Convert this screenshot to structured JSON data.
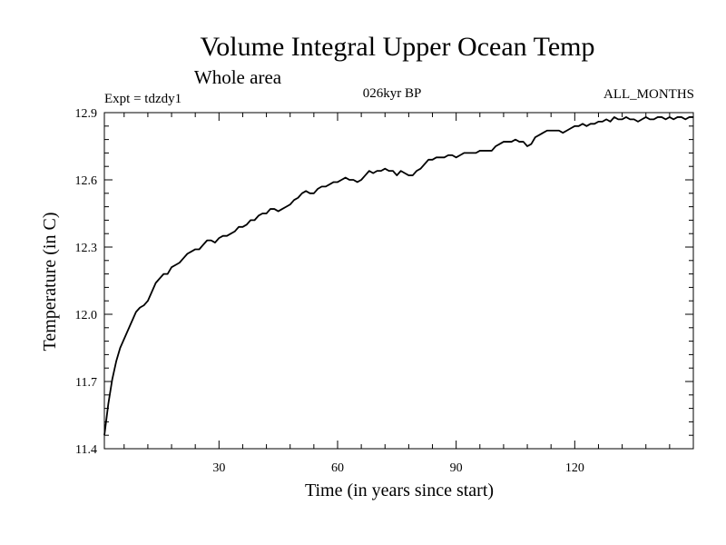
{
  "chart_data": {
    "type": "line",
    "title": "Volume Integral Upper Ocean Temp",
    "subtitle": "Whole area",
    "experiment": "Expt = tdzdy1",
    "period": "026kyr BP",
    "months": "ALL_MONTHS",
    "xlabel": "Time (in years since start)",
    "ylabel": "Temperature (in C)",
    "xlim": [
      1,
      150
    ],
    "ylim": [
      11.4,
      12.9
    ],
    "xticks": [
      30,
      60,
      90,
      120
    ],
    "yticks": [
      11.4,
      11.7,
      12.0,
      12.3,
      12.6,
      12.9
    ],
    "ytick_labels": [
      "11.4",
      "11.7",
      "12.0",
      "12.3",
      "12.6",
      "12.9"
    ],
    "grid": false,
    "series": [
      {
        "name": "Upper Ocean Temp",
        "color": "#000000",
        "x": [
          1,
          2,
          3,
          4,
          5,
          6,
          7,
          8,
          9,
          10,
          11,
          12,
          13,
          14,
          15,
          16,
          17,
          18,
          19,
          20,
          21,
          22,
          23,
          24,
          25,
          26,
          27,
          28,
          29,
          30,
          31,
          32,
          33,
          34,
          35,
          36,
          37,
          38,
          39,
          40,
          41,
          42,
          43,
          44,
          45,
          46,
          47,
          48,
          49,
          50,
          51,
          52,
          53,
          54,
          55,
          56,
          57,
          58,
          59,
          60,
          61,
          62,
          63,
          64,
          65,
          66,
          67,
          68,
          69,
          70,
          71,
          72,
          73,
          74,
          75,
          76,
          77,
          78,
          79,
          80,
          81,
          82,
          83,
          84,
          85,
          86,
          87,
          88,
          89,
          90,
          91,
          92,
          93,
          94,
          95,
          96,
          97,
          98,
          99,
          100,
          101,
          102,
          103,
          104,
          105,
          106,
          107,
          108,
          109,
          110,
          111,
          112,
          113,
          114,
          115,
          116,
          117,
          118,
          119,
          120,
          121,
          122,
          123,
          124,
          125,
          126,
          127,
          128,
          129,
          130,
          131,
          132,
          133,
          134,
          135,
          136,
          137,
          138,
          139,
          140,
          141,
          142,
          143,
          144,
          145,
          146,
          147,
          148,
          149,
          150
        ],
        "y": [
          11.46,
          11.6,
          11.71,
          11.79,
          11.85,
          11.89,
          11.93,
          11.97,
          12.01,
          12.03,
          12.04,
          12.06,
          12.1,
          12.14,
          12.16,
          12.18,
          12.18,
          12.21,
          12.22,
          12.23,
          12.25,
          12.27,
          12.28,
          12.29,
          12.29,
          12.31,
          12.33,
          12.33,
          12.32,
          12.34,
          12.35,
          12.35,
          12.36,
          12.37,
          12.39,
          12.39,
          12.4,
          12.42,
          12.42,
          12.44,
          12.45,
          12.45,
          12.47,
          12.47,
          12.46,
          12.47,
          12.48,
          12.49,
          12.51,
          12.52,
          12.54,
          12.55,
          12.54,
          12.54,
          12.56,
          12.57,
          12.57,
          12.58,
          12.59,
          12.59,
          12.6,
          12.61,
          12.6,
          12.6,
          12.59,
          12.6,
          12.62,
          12.64,
          12.63,
          12.64,
          12.64,
          12.65,
          12.64,
          12.64,
          12.62,
          12.64,
          12.63,
          12.62,
          12.62,
          12.64,
          12.65,
          12.67,
          12.69,
          12.69,
          12.7,
          12.7,
          12.7,
          12.71,
          12.71,
          12.7,
          12.71,
          12.72,
          12.72,
          12.72,
          12.72,
          12.73,
          12.73,
          12.73,
          12.73,
          12.75,
          12.76,
          12.77,
          12.77,
          12.77,
          12.78,
          12.77,
          12.77,
          12.75,
          12.76,
          12.79,
          12.8,
          12.81,
          12.82,
          12.82,
          12.82,
          12.82,
          12.81,
          12.82,
          12.83,
          12.84,
          12.84,
          12.85,
          12.84,
          12.85,
          12.85,
          12.86,
          12.86,
          12.87,
          12.86,
          12.88,
          12.87,
          12.87,
          12.88,
          12.87,
          12.87,
          12.86,
          12.87,
          12.88,
          12.87,
          12.87,
          12.88,
          12.88,
          12.87,
          12.88,
          12.87,
          12.88,
          12.88,
          12.87,
          12.88,
          12.88
        ]
      }
    ]
  }
}
